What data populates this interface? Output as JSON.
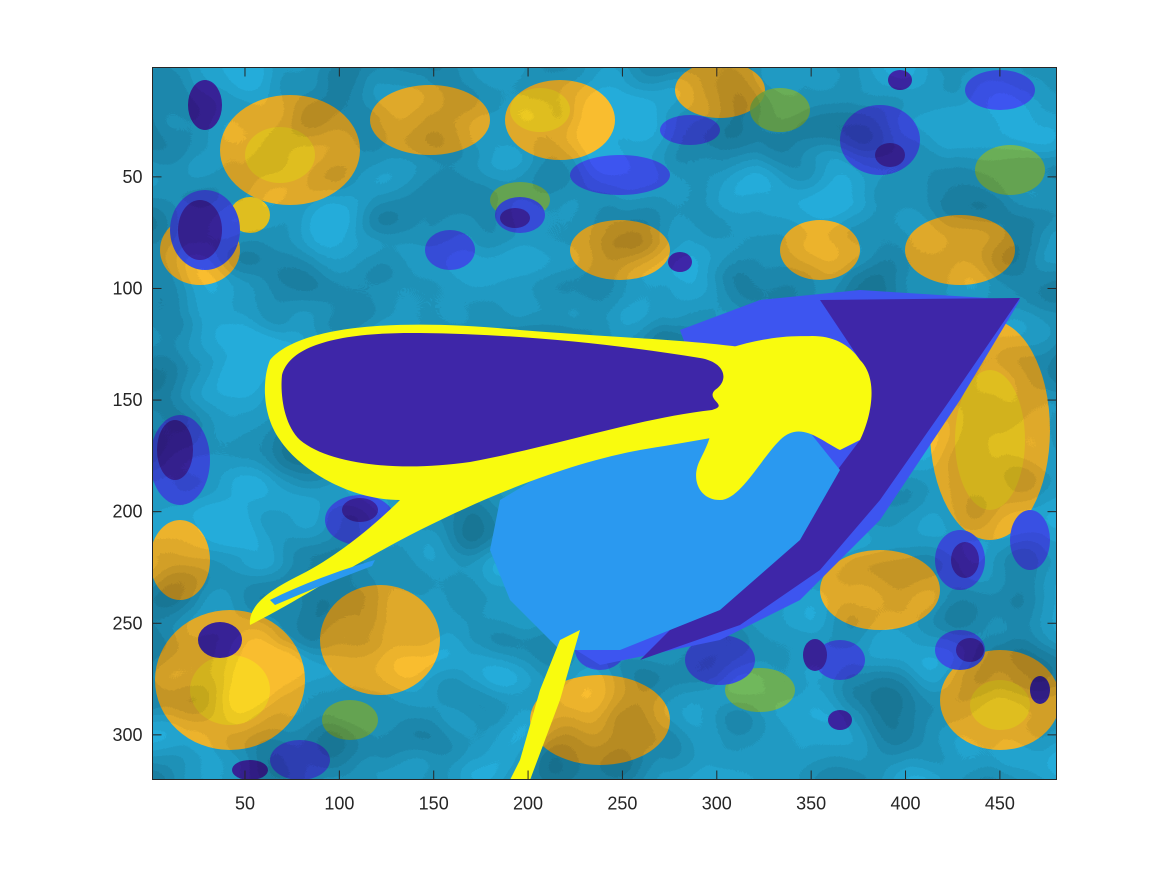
{
  "chart_data": {
    "type": "heatmap",
    "title": "",
    "xlabel": "",
    "ylabel": "",
    "xlim": [
      1,
      480
    ],
    "ylim": [
      1,
      320
    ],
    "y_reversed": true,
    "grid": false,
    "legend": "none",
    "colorbar": false,
    "x_ticks": [
      50,
      100,
      150,
      200,
      250,
      300,
      350,
      400,
      450
    ],
    "y_ticks": [
      50,
      100,
      150,
      200,
      250,
      300
    ],
    "x_tick_labels": [
      "50",
      "100",
      "150",
      "200",
      "250",
      "300",
      "350",
      "400",
      "450"
    ],
    "y_tick_labels": [
      "50",
      "100",
      "150",
      "200",
      "250",
      "300"
    ],
    "colormap": "parula",
    "color_levels": [
      "#3e26a8",
      "#3d55f0",
      "#2a99f0",
      "#1ec0c4",
      "#86c54b",
      "#f9bd2f",
      "#f9d423",
      "#f9fb0e"
    ]
  }
}
